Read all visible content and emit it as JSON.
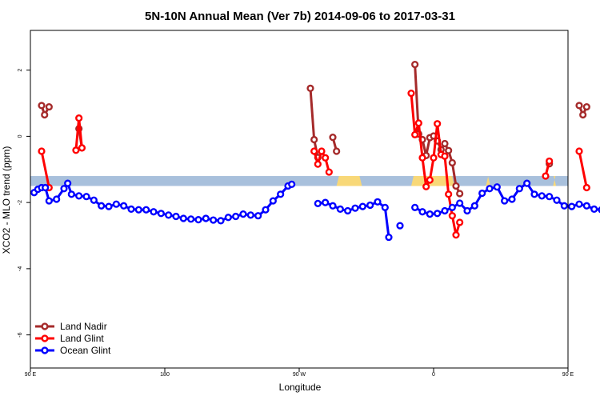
{
  "chart_data": {
    "type": "line",
    "title": "5N-10N Annual Mean (Ver 7b)   2014-09-06 to 2017-03-31",
    "xlabel": "Longitude",
    "ylabel": "XCO2 - MLO trend (ppm)",
    "xlim": [
      90,
      450
    ],
    "ylim": [
      -7,
      3.2
    ],
    "x_ticks": [
      {
        "value": 90,
        "label": "90 E"
      },
      {
        "value": 180,
        "label": "180"
      },
      {
        "value": 270,
        "label": "90 W"
      },
      {
        "value": 360,
        "label": "0"
      },
      {
        "value": 450,
        "label": "90 E"
      },
      {
        "value": 540,
        "label": "180"
      }
    ],
    "y_ticks": [
      {
        "value": 2,
        "label": "2"
      },
      {
        "value": 0,
        "label": "0"
      },
      {
        "value": -2,
        "label": "-2"
      },
      {
        "value": -4,
        "label": "-4"
      },
      {
        "value": -6,
        "label": "-6"
      }
    ],
    "grid": false,
    "legend_position": "bottom-left",
    "land_mask": {
      "y_range": [
        -1.5,
        -1.2
      ],
      "ocean_color": "#a8c0dc",
      "land_color": "#f8d878",
      "land_segments": [
        [
          295,
          312
        ],
        [
          345,
          374
        ],
        [
          395,
          398
        ],
        [
          440,
          442
        ]
      ]
    },
    "series": [
      {
        "name": "Land Nadir",
        "color": "#a52a2a",
        "segments": [
          [
            [
              97.5,
              0.93
            ],
            [
              99.5,
              0.65
            ],
            [
              102.5,
              0.89
            ]
          ],
          [
            [
              122.5,
              0.23
            ],
            [
              124.5,
              -0.35
            ]
          ],
          [
            [
              277.5,
              1.45
            ],
            [
              280,
              -0.1
            ],
            [
              282.5,
              -0.64
            ]
          ],
          [
            [
              292.5,
              -0.03
            ],
            [
              295,
              -0.45
            ]
          ],
          [
            [
              347.5,
              2.17
            ],
            [
              350,
              0.07
            ],
            [
              352.5,
              -0.1
            ],
            [
              355,
              -0.58
            ],
            [
              357.5,
              -0.04
            ],
            [
              360,
              0.01
            ],
            [
              362.5,
              -0.14
            ],
            [
              365,
              -0.4
            ],
            [
              367.5,
              -0.22
            ],
            [
              370,
              -0.43
            ],
            [
              372.5,
              -0.8
            ],
            [
              375,
              -1.5
            ],
            [
              377.5,
              -1.73
            ]
          ],
          [
            [
              437.5,
              -0.83
            ]
          ],
          [
            [
              457.5,
              0.93
            ],
            [
              460,
              0.65
            ],
            [
              462.5,
              0.89
            ]
          ],
          [
            [
              482.5,
              0.23
            ],
            [
              484.5,
              -0.35
            ]
          ]
        ]
      },
      {
        "name": "Land Glint",
        "color": "#ff0000",
        "segments": [
          [
            [
              97.5,
              -0.45
            ],
            [
              102.5,
              -1.55
            ]
          ],
          [
            [
              120.5,
              -0.42
            ],
            [
              122.5,
              0.55
            ],
            [
              124.5,
              -0.35
            ]
          ],
          [
            [
              280,
              -0.45
            ],
            [
              282.5,
              -0.84
            ],
            [
              285,
              -0.45
            ],
            [
              287.5,
              -0.65
            ],
            [
              290,
              -1.08
            ]
          ],
          [
            [
              345,
              1.3
            ],
            [
              347.5,
              0.05
            ],
            [
              350,
              0.4
            ],
            [
              352.5,
              -0.65
            ],
            [
              355,
              -1.52
            ],
            [
              357.5,
              -1.32
            ],
            [
              360,
              -0.65
            ],
            [
              362.5,
              0.38
            ],
            [
              365,
              -0.55
            ],
            [
              367.5,
              -0.6
            ],
            [
              370,
              -1.75
            ],
            [
              372.5,
              -2.4
            ],
            [
              375,
              -2.98
            ],
            [
              377.5,
              -2.6
            ]
          ],
          [
            [
              435,
              -1.2
            ],
            [
              437.5,
              -0.75
            ]
          ],
          [
            [
              457.5,
              -0.45
            ],
            [
              462.5,
              -1.55
            ]
          ],
          [
            [
              480.5,
              -0.42
            ],
            [
              482.5,
              0.55
            ],
            [
              484.5,
              -0.35
            ]
          ]
        ]
      },
      {
        "name": "Ocean Glint",
        "color": "#0000ff",
        "segments": [
          [
            [
              92.5,
              -1.7
            ],
            [
              95,
              -1.6
            ],
            [
              97.5,
              -1.55
            ],
            [
              100,
              -1.55
            ],
            [
              102.5,
              -1.95
            ],
            [
              107.5,
              -1.9
            ],
            [
              112.5,
              -1.58
            ],
            [
              115,
              -1.42
            ],
            [
              117.5,
              -1.75
            ],
            [
              122.5,
              -1.8
            ],
            [
              127.5,
              -1.82
            ],
            [
              132.5,
              -1.93
            ],
            [
              137.5,
              -2.1
            ],
            [
              142.5,
              -2.12
            ],
            [
              147.5,
              -2.05
            ],
            [
              152.5,
              -2.1
            ],
            [
              157.5,
              -2.2
            ],
            [
              162.5,
              -2.22
            ],
            [
              167.5,
              -2.22
            ],
            [
              172.5,
              -2.28
            ],
            [
              177.5,
              -2.33
            ],
            [
              182.5,
              -2.38
            ],
            [
              187.5,
              -2.42
            ],
            [
              192.5,
              -2.48
            ],
            [
              197.5,
              -2.5
            ],
            [
              202.5,
              -2.52
            ],
            [
              207.5,
              -2.48
            ],
            [
              212.5,
              -2.53
            ],
            [
              217.5,
              -2.55
            ],
            [
              222.5,
              -2.45
            ],
            [
              227.5,
              -2.42
            ],
            [
              232.5,
              -2.35
            ],
            [
              237.5,
              -2.38
            ],
            [
              242.5,
              -2.4
            ],
            [
              247.5,
              -2.22
            ],
            [
              252.5,
              -1.95
            ],
            [
              257.5,
              -1.75
            ],
            [
              262.5,
              -1.5
            ],
            [
              265,
              -1.45
            ]
          ],
          [
            [
              282.5,
              -2.03
            ],
            [
              287.5,
              -2.0
            ],
            [
              292.5,
              -2.1
            ],
            [
              297.5,
              -2.2
            ],
            [
              302.5,
              -2.25
            ],
            [
              307.5,
              -2.17
            ],
            [
              312.5,
              -2.12
            ],
            [
              317.5,
              -2.08
            ],
            [
              322.5,
              -1.98
            ],
            [
              327.5,
              -2.15
            ],
            [
              330,
              -3.05
            ]
          ],
          [
            [
              337.5,
              -2.7
            ]
          ],
          [
            [
              347.5,
              -2.15
            ],
            [
              352.5,
              -2.28
            ],
            [
              357.5,
              -2.35
            ],
            [
              362.5,
              -2.33
            ],
            [
              367.5,
              -2.25
            ],
            [
              372.5,
              -2.15
            ],
            [
              377.5,
              -2.02
            ],
            [
              382.5,
              -2.25
            ],
            [
              387.5,
              -2.1
            ],
            [
              392.5,
              -1.72
            ],
            [
              397.5,
              -1.58
            ],
            [
              402.5,
              -1.53
            ],
            [
              407.5,
              -1.95
            ],
            [
              412.5,
              -1.9
            ],
            [
              417.5,
              -1.58
            ],
            [
              422.5,
              -1.42
            ],
            [
              427.5,
              -1.75
            ],
            [
              432.5,
              -1.8
            ],
            [
              437.5,
              -1.82
            ],
            [
              442.5,
              -1.93
            ],
            [
              447.5,
              -2.1
            ],
            [
              452.5,
              -2.12
            ],
            [
              457.5,
              -2.05
            ],
            [
              462.5,
              -2.1
            ],
            [
              467.5,
              -2.2
            ],
            [
              472.5,
              -2.22
            ],
            [
              477.5,
              -2.22
            ]
          ]
        ]
      }
    ]
  }
}
